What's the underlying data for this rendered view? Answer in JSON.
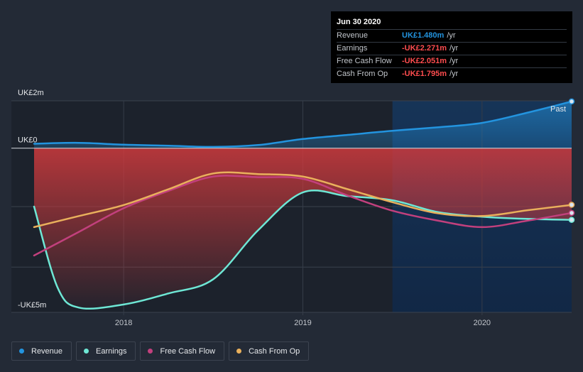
{
  "tooltip": {
    "title": "Jun 30 2020",
    "rows": [
      {
        "label": "Revenue",
        "value": "UK£1.480m",
        "unit": "/yr",
        "color": "#2394df"
      },
      {
        "label": "Earnings",
        "value": "-UK£2.271m",
        "unit": "/yr",
        "color": "#ff4d4f"
      },
      {
        "label": "Free Cash Flow",
        "value": "-UK£2.051m",
        "unit": "/yr",
        "color": "#ff4d4f"
      },
      {
        "label": "Cash From Op",
        "value": "-UK£1.795m",
        "unit": "/yr",
        "color": "#ff4d4f"
      }
    ]
  },
  "legend": [
    {
      "label": "Revenue",
      "color": "#2394df"
    },
    {
      "label": "Earnings",
      "color": "#6ee7d5"
    },
    {
      "label": "Free Cash Flow",
      "color": "#c2407d"
    },
    {
      "label": "Cash From Op",
      "color": "#e9b05c"
    }
  ],
  "chart_data": {
    "type": "line",
    "title": "",
    "unit": "UK£m",
    "ylim": [
      -5.2,
      1.5
    ],
    "xlim": [
      2017.5,
      2020.5
    ],
    "y_tick_labels": [
      {
        "label": "UK£2m",
        "value": 1.5
      },
      {
        "label": "UK£0",
        "value": 0
      },
      {
        "label": "-UK£5m",
        "value": -5.2
      }
    ],
    "x_ticks": [
      {
        "label": "2018",
        "value": 2018.0
      },
      {
        "label": "2019",
        "value": 2019.0
      },
      {
        "label": "2020",
        "value": 2020.0
      }
    ],
    "past_label": "Past",
    "past_start": 2019.5,
    "series": [
      {
        "name": "Revenue",
        "color": "#2394df",
        "x": [
          2017.5,
          2017.75,
          2018.0,
          2018.25,
          2018.5,
          2018.75,
          2019.0,
          2019.25,
          2019.5,
          2019.75,
          2020.0,
          2020.25,
          2020.5
        ],
        "y": [
          0.14,
          0.17,
          0.11,
          0.08,
          0.04,
          0.1,
          0.29,
          0.42,
          0.55,
          0.66,
          0.8,
          1.12,
          1.48
        ]
      },
      {
        "name": "Earnings",
        "color": "#6ee7d5",
        "x": [
          2017.5,
          2017.63,
          2017.75,
          2018.0,
          2018.25,
          2018.5,
          2018.75,
          2019.0,
          2019.25,
          2019.5,
          2019.75,
          2020.0,
          2020.25,
          2020.5
        ],
        "y": [
          -1.85,
          -4.4,
          -5.05,
          -4.95,
          -4.6,
          -4.15,
          -2.6,
          -1.4,
          -1.52,
          -1.65,
          -2.02,
          -2.17,
          -2.24,
          -2.271
        ]
      },
      {
        "name": "Free Cash Flow",
        "color": "#c2407d",
        "x": [
          2017.5,
          2017.75,
          2018.0,
          2018.25,
          2018.5,
          2018.75,
          2019.0,
          2019.25,
          2019.5,
          2019.75,
          2020.0,
          2020.25,
          2020.5
        ],
        "y": [
          -3.4,
          -2.65,
          -1.9,
          -1.35,
          -0.9,
          -0.92,
          -0.97,
          -1.5,
          -1.98,
          -2.29,
          -2.5,
          -2.3,
          -2.051
        ]
      },
      {
        "name": "Cash From Op",
        "color": "#e9b05c",
        "x": [
          2017.5,
          2017.75,
          2018.0,
          2018.25,
          2018.5,
          2018.75,
          2019.0,
          2019.25,
          2019.5,
          2019.75,
          2020.0,
          2020.25,
          2020.5
        ],
        "y": [
          -2.5,
          -2.15,
          -1.8,
          -1.3,
          -0.8,
          -0.82,
          -0.9,
          -1.3,
          -1.71,
          -2.06,
          -2.15,
          -1.97,
          -1.795
        ]
      }
    ]
  }
}
